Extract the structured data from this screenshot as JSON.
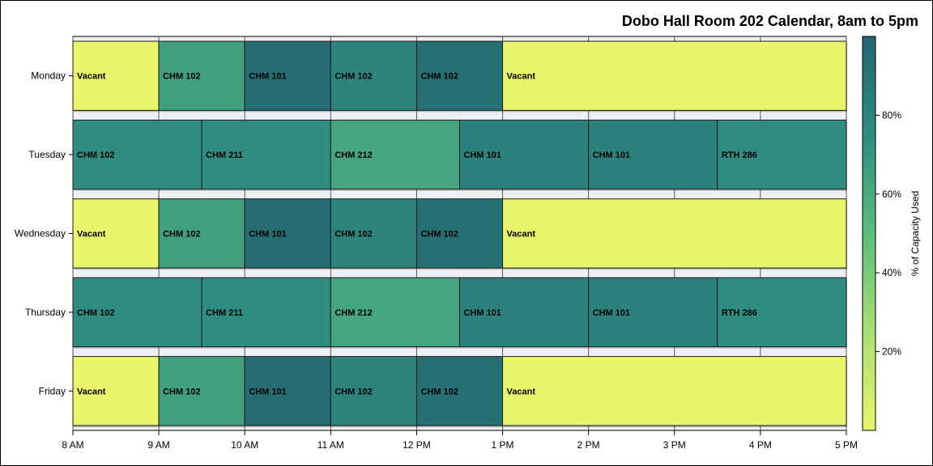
{
  "chart_data": {
    "type": "bar",
    "orientation": "horizontal-stacked",
    "title": "Dobo Hall Room 202 Calendar, 8am to 5pm",
    "categories": [
      "Monday",
      "Tuesday",
      "Wednesday",
      "Thursday",
      "Friday"
    ],
    "x_ticks": [
      "8 AM",
      "9 AM",
      "10 AM",
      "11 AM",
      "12 PM",
      "1 PM",
      "2 PM",
      "3 PM",
      "4 PM",
      "5 PM"
    ],
    "x_range_hours": [
      8,
      17
    ],
    "colorbar_label": "% of Capacity Used",
    "colorbar_ticks": [
      {
        "value": 20,
        "label": "20%"
      },
      {
        "value": 40,
        "label": "40%"
      },
      {
        "value": 60,
        "label": "60%"
      },
      {
        "value": 80,
        "label": "80%"
      }
    ],
    "colorbar_range": [
      0,
      100
    ],
    "schedule": [
      {
        "day": "Monday",
        "blocks": [
          {
            "label": "Vacant",
            "start": 8,
            "end": 9,
            "capacity": 0
          },
          {
            "label": "CHM 102",
            "start": 9,
            "end": 10,
            "capacity": 65
          },
          {
            "label": "CHM 101",
            "start": 10,
            "end": 11,
            "capacity": 95
          },
          {
            "label": "CHM 102",
            "start": 11,
            "end": 12,
            "capacity": 80
          },
          {
            "label": "CHM 102",
            "start": 12,
            "end": 13,
            "capacity": 93
          },
          {
            "label": "Vacant",
            "start": 13,
            "end": 17,
            "capacity": 0
          }
        ]
      },
      {
        "day": "Tuesday",
        "blocks": [
          {
            "label": "CHM 102",
            "start": 8,
            "end": 9.5,
            "capacity": 75
          },
          {
            "label": "CHM 211",
            "start": 9.5,
            "end": 11,
            "capacity": 75
          },
          {
            "label": "CHM 212",
            "start": 11,
            "end": 12.5,
            "capacity": 62
          },
          {
            "label": "CHM 101",
            "start": 12.5,
            "end": 14,
            "capacity": 82
          },
          {
            "label": "CHM 101",
            "start": 14,
            "end": 15.5,
            "capacity": 82
          },
          {
            "label": "RTH 286",
            "start": 15.5,
            "end": 17,
            "capacity": 75
          }
        ]
      },
      {
        "day": "Wednesday",
        "blocks": [
          {
            "label": "Vacant",
            "start": 8,
            "end": 9,
            "capacity": 0
          },
          {
            "label": "CHM 102",
            "start": 9,
            "end": 10,
            "capacity": 65
          },
          {
            "label": "CHM 101",
            "start": 10,
            "end": 11,
            "capacity": 95
          },
          {
            "label": "CHM 102",
            "start": 11,
            "end": 12,
            "capacity": 80
          },
          {
            "label": "CHM 102",
            "start": 12,
            "end": 13,
            "capacity": 93
          },
          {
            "label": "Vacant",
            "start": 13,
            "end": 17,
            "capacity": 0
          }
        ]
      },
      {
        "day": "Thursday",
        "blocks": [
          {
            "label": "CHM 102",
            "start": 8,
            "end": 9.5,
            "capacity": 75
          },
          {
            "label": "CHM 211",
            "start": 9.5,
            "end": 11,
            "capacity": 75
          },
          {
            "label": "CHM 212",
            "start": 11,
            "end": 12.5,
            "capacity": 62
          },
          {
            "label": "CHM 101",
            "start": 12.5,
            "end": 14,
            "capacity": 82
          },
          {
            "label": "CHM 101",
            "start": 14,
            "end": 15.5,
            "capacity": 82
          },
          {
            "label": "RTH 286",
            "start": 15.5,
            "end": 17,
            "capacity": 75
          }
        ]
      },
      {
        "day": "Friday",
        "blocks": [
          {
            "label": "Vacant",
            "start": 8,
            "end": 9,
            "capacity": 0
          },
          {
            "label": "CHM 102",
            "start": 9,
            "end": 10,
            "capacity": 65
          },
          {
            "label": "CHM 101",
            "start": 10,
            "end": 11,
            "capacity": 95
          },
          {
            "label": "CHM 102",
            "start": 11,
            "end": 12,
            "capacity": 80
          },
          {
            "label": "CHM 102",
            "start": 12,
            "end": 13,
            "capacity": 93
          },
          {
            "label": "Vacant",
            "start": 13,
            "end": 17,
            "capacity": 0
          }
        ]
      }
    ],
    "colors": {
      "ramp": [
        "#e9f56b",
        "#a9de74",
        "#5bbd7c",
        "#2e8c80",
        "#23656f"
      ],
      "plot_background": "#eef1f4"
    },
    "grid": true,
    "legend": "right-colorbar"
  }
}
